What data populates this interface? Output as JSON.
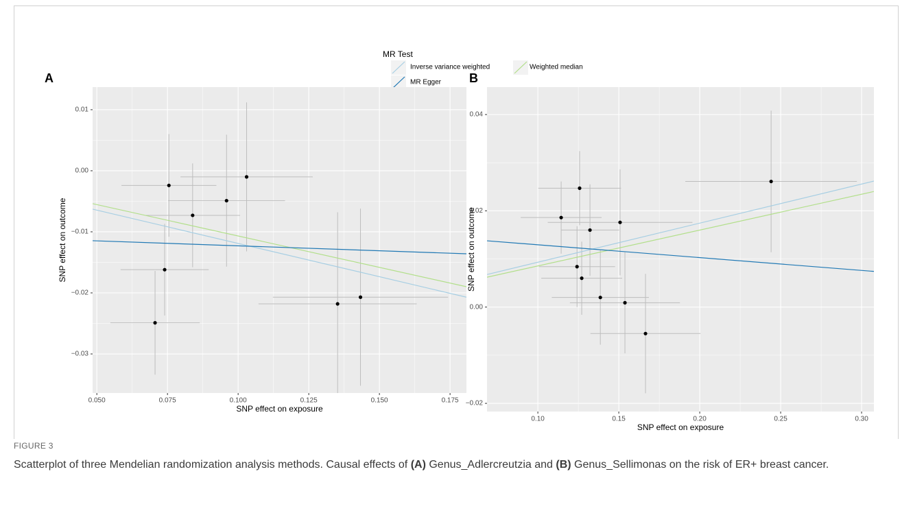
{
  "legend": {
    "title": "MR Test",
    "entries": [
      {
        "name": "Inverse variance weighted",
        "color": "#a6cee3"
      },
      {
        "name": "Weighted median",
        "color": "#b2df8a"
      },
      {
        "name": "MR Egger",
        "color": "#1f78b4"
      }
    ]
  },
  "chart_data": [
    {
      "type": "scatter",
      "panel_label": "A",
      "x_label": "SNP effect on exposure",
      "y_label": "SNP effect on outcome",
      "xlim": [
        0.0485,
        0.1808
      ],
      "ylim": [
        -0.0364,
        0.0137
      ],
      "xticks": [
        {
          "value": 0.05,
          "label": "0.050"
        },
        0.075,
        {
          "value": 0.1,
          "label": "0.100"
        },
        0.125,
        {
          "value": 0.15,
          "label": "0.150"
        },
        0.175
      ],
      "yticks": [
        0.01,
        {
          "value": 0,
          "label": "0.00"
        },
        {
          "value": -0.01,
          "label": "−0.01"
        },
        {
          "value": -0.02,
          "label": "−0.02"
        },
        {
          "value": -0.03,
          "label": "−0.03"
        }
      ],
      "grid": true,
      "point_color": "#000000",
      "error_color": "#bdbdbd",
      "x": [
        0.0755,
        0.0839,
        0.0959,
        0.103,
        0.074,
        0.0706,
        0.1352,
        0.1433
      ],
      "y": [
        -0.0024,
        -0.0073,
        -0.0049,
        -0.001,
        -0.0162,
        -0.0249,
        -0.0218,
        -0.0207
      ],
      "x_err": [
        0.0168,
        0.0168,
        0.0207,
        0.0234,
        0.0156,
        0.0158,
        0.028,
        0.031
      ],
      "y_err": [
        0.0084,
        0.0085,
        0.0108,
        0.0122,
        0.0075,
        0.0085,
        0.015,
        0.0145
      ],
      "fits": [
        {
          "intercept": -0.001,
          "slope": -0.109
        },
        {
          "intercept": -0.0004,
          "slope": -0.1028
        },
        {
          "intercept": -0.01067,
          "slope": -0.0162
        }
      ]
    },
    {
      "type": "scatter",
      "panel_label": "B",
      "x_label": "SNP effect on exposure",
      "y_label": "SNP effect on outcome",
      "xlim": [
        0.0686,
        0.3076
      ],
      "ylim": [
        -0.0217,
        0.0457
      ],
      "xticks": [
        {
          "value": 0.1,
          "label": "0.10"
        },
        0.15,
        {
          "value": 0.2,
          "label": "0.20"
        },
        0.25,
        {
          "value": 0.3,
          "label": "0.30"
        }
      ],
      "yticks": [
        0.04,
        0.02,
        {
          "value": 0,
          "label": "0.00"
        },
        {
          "value": -0.02,
          "label": "−0.02"
        }
      ],
      "grid": true,
      "point_color": "#000000",
      "error_color": "#bdbdbd",
      "x": [
        0.1144,
        0.1258,
        0.1322,
        0.1508,
        0.1242,
        0.1271,
        0.1386,
        0.1538,
        0.1665,
        0.2441
      ],
      "y": [
        0.0186,
        0.0247,
        0.016,
        0.0176,
        0.0084,
        0.006,
        0.002,
        0.0009,
        -0.0055,
        0.0261
      ],
      "x_err": [
        0.025,
        0.0256,
        0.018,
        0.0447,
        0.0235,
        0.025,
        0.03,
        0.034,
        0.034,
        0.053
      ],
      "y_err": [
        0.0075,
        0.0077,
        0.0095,
        0.011,
        0.0084,
        0.0076,
        0.0098,
        0.0105,
        0.0124,
        0.0147
      ],
      "fits": [
        {
          "intercept": 0.0012,
          "slope": 0.0812
        },
        {
          "intercept": 0.0011,
          "slope": 0.0745
        },
        {
          "intercept": 0.0156,
          "slope": -0.0266
        }
      ]
    }
  ],
  "figure": {
    "label": "FIGURE 3",
    "caption": [
      "Scatterplot of three Mendelian randomization analysis methods. Causal effects of ",
      "(A)",
      " Genus_Adlercreutzia and ",
      "(B)",
      " Genus_Sellimonas on the risk of ER+ breast cancer."
    ]
  }
}
